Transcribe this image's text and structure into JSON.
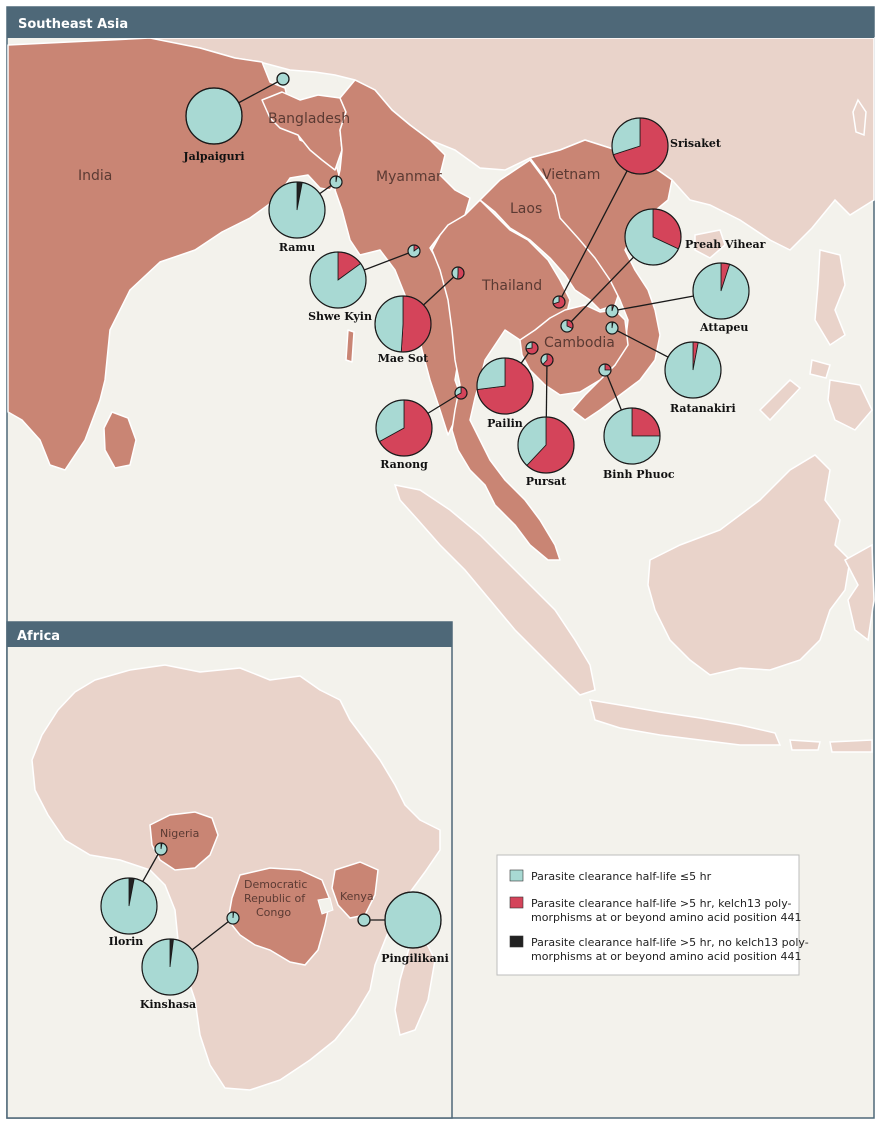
{
  "panels": {
    "southeast_asia_title": "Southeast Asia",
    "africa_title": "Africa"
  },
  "countries": {
    "india": "India",
    "bangladesh": "Bangladesh",
    "myanmar": "Myanmar",
    "vietnam": "Vietnam",
    "laos": "Laos",
    "thailand": "Thailand",
    "cambodia": "Cambodia",
    "nigeria": "Nigeria",
    "drc_line1": "Democratic",
    "drc_line2": "Republic of",
    "drc_line3": "Congo",
    "kenya": "Kenya"
  },
  "colors": {
    "ocean": "#f3f2ec",
    "study_country": "#c98574",
    "other_land": "#e9d3ca",
    "header_bar": "#4e6878",
    "pie_sensitive": "#a8d9d3",
    "pie_kelch13": "#d4445a",
    "pie_other": "#222222"
  },
  "legend": [
    {
      "text1": "Parasite clearance half-life ≤5 hr",
      "text2": ""
    },
    {
      "text1": "Parasite clearance half-life >5 hr, kelch13 poly-",
      "text2": "morphisms at or beyond amino acid position 441"
    },
    {
      "text1": "Parasite clearance half-life >5 hr, no kelch13 poly-",
      "text2": "morphisms at or beyond amino acid position 441"
    }
  ],
  "sites": [
    {
      "name": "Jalpaiguri",
      "sensitive": 1.0,
      "kelch13": 0.0,
      "other": 0.0
    },
    {
      "name": "Ramu",
      "sensitive": 0.97,
      "kelch13": 0.0,
      "other": 0.03
    },
    {
      "name": "Shwe Kyin",
      "sensitive": 0.85,
      "kelch13": 0.15,
      "other": 0.0
    },
    {
      "name": "Mae Sot",
      "sensitive": 0.49,
      "kelch13": 0.51,
      "other": 0.0
    },
    {
      "name": "Ranong",
      "sensitive": 0.33,
      "kelch13": 0.67,
      "other": 0.0
    },
    {
      "name": "Pailin",
      "sensitive": 0.27,
      "kelch13": 0.73,
      "other": 0.0
    },
    {
      "name": "Pursat",
      "sensitive": 0.38,
      "kelch13": 0.62,
      "other": 0.0
    },
    {
      "name": "Srisaket",
      "sensitive": 0.3,
      "kelch13": 0.7,
      "other": 0.0
    },
    {
      "name": "Preah Vihear",
      "sensitive": 0.68,
      "kelch13": 0.32,
      "other": 0.0
    },
    {
      "name": "Attapeu",
      "sensitive": 0.95,
      "kelch13": 0.05,
      "other": 0.0
    },
    {
      "name": "Ratanakiri",
      "sensitive": 0.97,
      "kelch13": 0.03,
      "other": 0.0
    },
    {
      "name": "Binh Phuoc",
      "sensitive": 0.75,
      "kelch13": 0.25,
      "other": 0.0
    },
    {
      "name": "Ilorin",
      "sensitive": 0.97,
      "kelch13": 0.0,
      "other": 0.03
    },
    {
      "name": "Kinshasa",
      "sensitive": 0.98,
      "kelch13": 0.0,
      "other": 0.02
    },
    {
      "name": "Pingilikani",
      "sensitive": 1.0,
      "kelch13": 0.0,
      "other": 0.0
    }
  ]
}
